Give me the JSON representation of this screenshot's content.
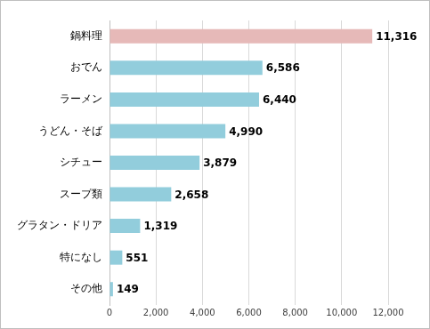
{
  "chart_data": {
    "type": "bar",
    "orientation": "horizontal",
    "categories": [
      "鍋料理",
      "おでん",
      "ラーメン",
      "うどん・そば",
      "シチュー",
      "スープ類",
      "グラタン・ドリア",
      "特になし",
      "その他"
    ],
    "values": [
      11316,
      6586,
      6440,
      4990,
      3879,
      2658,
      1319,
      551,
      149
    ],
    "value_labels": [
      "11,316",
      "6,586",
      "6,440",
      "4,990",
      "3,879",
      "2,658",
      "1,319",
      "551",
      "149"
    ],
    "colors": [
      "#e6b9b8",
      "#92cddc",
      "#92cddc",
      "#92cddc",
      "#92cddc",
      "#92cddc",
      "#92cddc",
      "#92cddc",
      "#92cddc"
    ],
    "xlim": [
      0,
      12000
    ],
    "xticks": [
      0,
      {
        "value": 2000,
        "label": "2,000"
      },
      {
        "value": 4000,
        "label": "4,000"
      },
      {
        "value": 6000,
        "label": "6,000"
      },
      {
        "value": 8000,
        "label": "8,000"
      },
      {
        "value": 10000,
        "label": "10,000"
      },
      {
        "value": 12000,
        "label": "12,000"
      }
    ],
    "grid": true,
    "data_labels": true
  }
}
